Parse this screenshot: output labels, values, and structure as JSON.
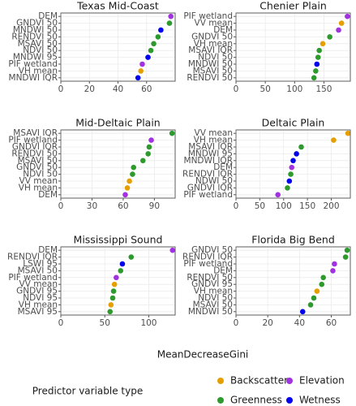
{
  "chart_data": [
    {
      "type": "dot",
      "title": "Texas Mid-Coast",
      "categories": [
        "DEM",
        "GNDVI 50",
        "MNDWI 50",
        "RENDVI 50",
        "MSAVI 50",
        "NDVI 50",
        "MNDWI 95",
        "PIF wetland",
        "VH mean",
        "MNDWI IQR"
      ],
      "values": [
        77,
        76,
        70,
        68,
        65,
        63,
        61,
        57,
        56,
        54
      ],
      "groups": [
        "Elevation",
        "Greenness",
        "Wetness",
        "Greenness",
        "Greenness",
        "Greenness",
        "Wetness",
        "Elevation",
        "Backscatter",
        "Wetness"
      ],
      "xlim": [
        0,
        80
      ],
      "xticks": [
        0,
        20,
        40,
        60
      ]
    },
    {
      "type": "dot",
      "title": "Chenier Plain",
      "categories": [
        "PIF wetland",
        "VV mean",
        "DEM",
        "GNDVI 50",
        "VH mean",
        "MSAVI IQR",
        "NDVI 50",
        "MNDWI 50",
        "MSAVI 50",
        "RENDVI 50"
      ],
      "values": [
        190,
        180,
        175,
        160,
        148,
        142,
        140,
        138,
        136,
        133
      ],
      "groups": [
        "Elevation",
        "Backscatter",
        "Elevation",
        "Greenness",
        "Backscatter",
        "Greenness",
        "Greenness",
        "Wetness",
        "Greenness",
        "Greenness"
      ],
      "xlim": [
        0,
        195
      ],
      "xticks": [
        0,
        50,
        100,
        150
      ]
    },
    {
      "type": "dot",
      "title": "Mid-Deltaic Plain",
      "categories": [
        "MSAVI IQR",
        "PIF wetland",
        "GNDVI IQR",
        "RENDVI 50",
        "MSAVI 50",
        "GNDVI 50",
        "NDVI 50",
        "VV mean",
        "VH mean",
        "DEM"
      ],
      "values": [
        107,
        87,
        85,
        84,
        79,
        70,
        69,
        66,
        64,
        62
      ],
      "groups": [
        "Greenness",
        "Elevation",
        "Greenness",
        "Greenness",
        "Greenness",
        "Greenness",
        "Greenness",
        "Backscatter",
        "Backscatter",
        "Elevation"
      ],
      "xlim": [
        0,
        110
      ],
      "xticks": [
        0,
        30,
        60,
        90
      ]
    },
    {
      "type": "dot",
      "title": "Deltaic Plain",
      "categories": [
        "VV mean",
        "VH mean",
        "MSAVI IQR",
        "MNDWI 95",
        "MNDWI IQR",
        "DEM",
        "RENDVI IQR",
        "NDWI 50",
        "GNDVI IQR",
        "PIF wetland"
      ],
      "values": [
        235,
        205,
        137,
        127,
        120,
        117,
        115,
        112,
        108,
        88
      ],
      "groups": [
        "Backscatter",
        "Backscatter",
        "Greenness",
        "Wetness",
        "Wetness",
        "Elevation",
        "Greenness",
        "Wetness",
        "Greenness",
        "Elevation"
      ],
      "xlim": [
        0,
        240
      ],
      "xticks": [
        0,
        50,
        100,
        150,
        200
      ]
    },
    {
      "type": "dot",
      "title": "Mississippi Sound",
      "categories": [
        "DEM",
        "RENDVI IQR",
        "LSWI 95",
        "MSAVI 50",
        "PIF wetland",
        "VV mean",
        "GNDVI 95",
        "NDVI 95",
        "VH mean",
        "MSAVI 95"
      ],
      "values": [
        127,
        80,
        70,
        68,
        63,
        61,
        60,
        59,
        57,
        56
      ],
      "groups": [
        "Elevation",
        "Greenness",
        "Wetness",
        "Greenness",
        "Elevation",
        "Backscatter",
        "Greenness",
        "Greenness",
        "Backscatter",
        "Greenness"
      ],
      "xlim": [
        0,
        130
      ],
      "xticks": [
        0,
        50,
        100
      ]
    },
    {
      "type": "dot",
      "title": "Florida Big Bend",
      "categories": [
        "GNDVI 50",
        "RENDVI IQR",
        "PIF wetland",
        "DEM",
        "RENDVI 50",
        "GNDVI 95",
        "VH mean",
        "NDVI 50",
        "MSAVI 50",
        "MNDWI 50"
      ],
      "values": [
        70,
        69,
        62,
        61,
        55,
        54,
        51,
        49,
        47,
        42
      ],
      "groups": [
        "Greenness",
        "Greenness",
        "Elevation",
        "Elevation",
        "Greenness",
        "Greenness",
        "Backscatter",
        "Greenness",
        "Greenness",
        "Wetness"
      ],
      "xlim": [
        0,
        72
      ],
      "xticks": [
        0,
        20,
        40,
        60
      ]
    }
  ],
  "xlabel": "MeanDecreaseGini",
  "legend": {
    "title": "Predictor variable type",
    "items": [
      {
        "name": "Backscatter",
        "color": "#e69f00"
      },
      {
        "name": "Elevation",
        "color": "#a132e0"
      },
      {
        "name": "Greenness",
        "color": "#2e9a2e"
      },
      {
        "name": "Wetness",
        "color": "#0000ee"
      }
    ]
  },
  "grid": true
}
